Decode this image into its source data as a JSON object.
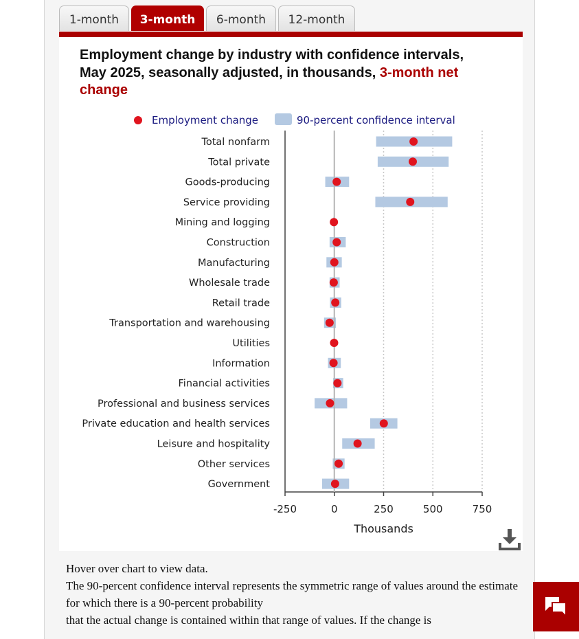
{
  "tabs": [
    {
      "label": "1-month",
      "active": false
    },
    {
      "label": "3-month",
      "active": true
    },
    {
      "label": "6-month",
      "active": false
    },
    {
      "label": "12-month",
      "active": false
    }
  ],
  "chart_title": {
    "main": "Employment change by industry with confidence intervals, May 2025, seasonally adjusted, in thousands, ",
    "highlight": "3-month net change"
  },
  "legend": {
    "point_label": "Employment change",
    "interval_label": "90-percent confidence interval"
  },
  "colors": {
    "accent": "#aa0000",
    "point": "#e0141e",
    "interval": "#b4c9e2",
    "legend_text": "#1a1a80"
  },
  "icons": {
    "download": "download-icon",
    "chat": "chat-icon"
  },
  "notes": {
    "line1": "Hover over chart to view data.",
    "line2": "The 90-percent confidence interval represents the symmetric range of values around the estimate for which there is a 90-percent probability",
    "line3": "that the actual change is contained within that range of values. If the change is"
  },
  "chart_data": {
    "type": "scatter",
    "title": "Employment change by industry with confidence intervals, May 2025, seasonally adjusted, in thousands, 3-month net change",
    "xlabel": "Thousands",
    "ylabel": "",
    "xlim": [
      -250,
      750
    ],
    "xticks": [
      -250,
      0,
      250,
      500,
      750
    ],
    "xtick_labels": [
      "-250",
      "0",
      "250",
      "500",
      "750"
    ],
    "grid": "vertical dotted",
    "legend_position": "top",
    "categories": [
      "Total nonfarm",
      "Total private",
      "Goods-producing",
      "Service providing",
      "Mining and logging",
      "Construction",
      "Manufacturing",
      "Wholesale trade",
      "Retail trade",
      "Transportation and warehousing",
      "Utilities",
      "Information",
      "Financial activities",
      "Professional and business services",
      "Private education and health services",
      "Leisure and hospitality",
      "Other services",
      "Government"
    ],
    "series": [
      {
        "name": "Employment change",
        "values": [
          402,
          398,
          12,
          385,
          -2,
          12,
          0,
          -3,
          5,
          -24,
          -1,
          -4,
          16,
          -22,
          251,
          118,
          22,
          4
        ]
      },
      {
        "name": "90-percent confidence interval",
        "lower": [
          212,
          220,
          -46,
          208,
          -5,
          -24,
          -40,
          -24,
          -22,
          -52,
          -4,
          -32,
          -6,
          -100,
          182,
          40,
          -8,
          -62
        ],
        "upper": [
          598,
          580,
          75,
          575,
          3,
          58,
          38,
          27,
          35,
          8,
          3,
          33,
          45,
          65,
          320,
          205,
          52,
          75
        ]
      }
    ]
  }
}
